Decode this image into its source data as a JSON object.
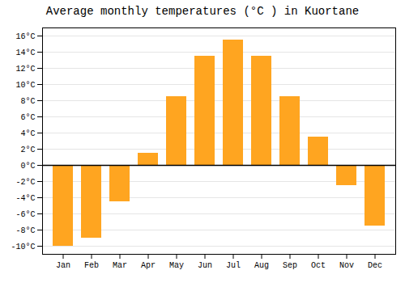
{
  "chart_data": {
    "type": "bar",
    "title": "Average monthly temperatures (°C ) in Kuortane",
    "categories": [
      "Jan",
      "Feb",
      "Mar",
      "Apr",
      "May",
      "Jun",
      "Jul",
      "Aug",
      "Sep",
      "Oct",
      "Nov",
      "Dec"
    ],
    "values": [
      -10,
      -9,
      -4.5,
      1.5,
      8.5,
      13.5,
      15.5,
      13.5,
      8.5,
      3.5,
      -2.5,
      -7.5
    ],
    "color": "#FFA520",
    "ylim": [
      -11,
      17
    ],
    "yticks": [
      {
        "value": -10,
        "label": "-10°C"
      },
      {
        "value": -8,
        "label": "-8°C"
      },
      {
        "value": -6,
        "label": "-6°C"
      },
      {
        "value": -4,
        "label": "-4°C"
      },
      {
        "value": -2,
        "label": "-2°C"
      },
      {
        "value": 0,
        "label": "0°C"
      },
      {
        "value": 2,
        "label": "2°C"
      },
      {
        "value": 4,
        "label": "4°C"
      },
      {
        "value": 6,
        "label": "6°C"
      },
      {
        "value": 8,
        "label": "8°C"
      },
      {
        "value": 10,
        "label": "10°C"
      },
      {
        "value": 12,
        "label": "12°C"
      },
      {
        "value": 14,
        "label": "14°C"
      },
      {
        "value": 16,
        "label": "16°C"
      }
    ],
    "grid": true
  }
}
